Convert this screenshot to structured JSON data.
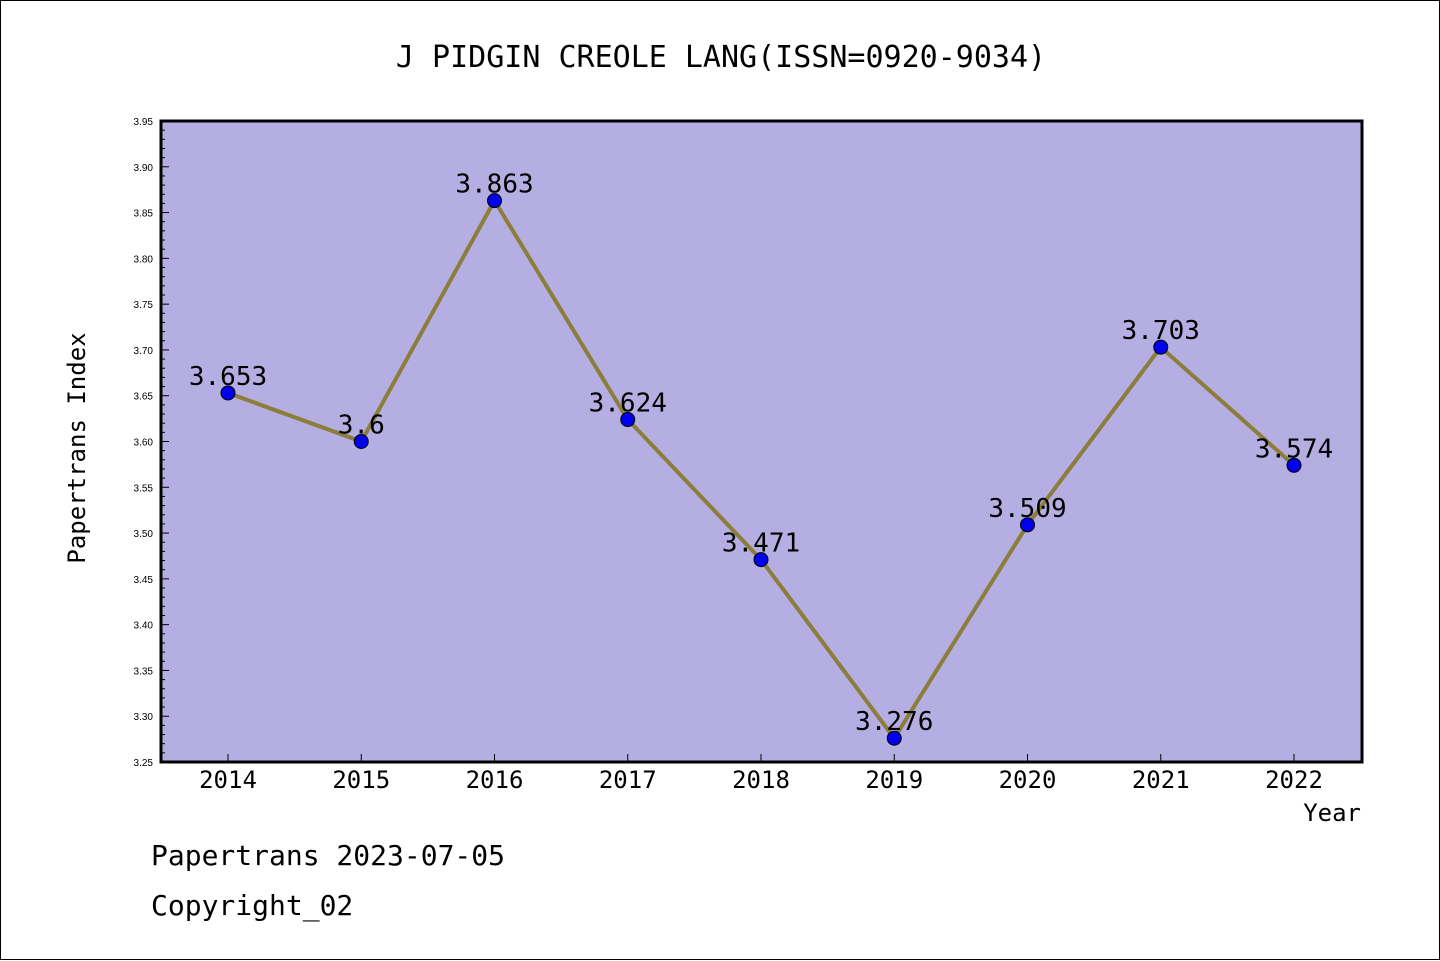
{
  "colors": {
    "plot_background": "#b5aee2",
    "line": "#8b7d3a",
    "marker": "#0000ee",
    "axis": "#000000"
  },
  "footer": {
    "line1": "Papertrans 2023-07-05",
    "line2": "Copyright_02"
  },
  "chart_data": {
    "type": "line",
    "title": "J PIDGIN CREOLE LANG(ISSN=0920-9034)",
    "xlabel": "Year",
    "ylabel": "Papertrans Index",
    "categories": [
      "2014",
      "2015",
      "2016",
      "2017",
      "2018",
      "2019",
      "2020",
      "2021",
      "2022"
    ],
    "series": [
      {
        "values": [
          3.653,
          3.6,
          3.863,
          3.624,
          3.471,
          3.276,
          3.509,
          3.703,
          3.574
        ],
        "labels": [
          "3.653",
          "3.6",
          "3.863",
          "3.624",
          "3.471",
          "3.276",
          "3.509",
          "3.703",
          "3.574"
        ]
      }
    ],
    "ylim": [
      3.25,
      3.95
    ],
    "yticks": [
      "3.25",
      "3.30",
      "3.35",
      "3.40",
      "3.45",
      "3.50",
      "3.55",
      "3.60",
      "3.65",
      "3.70",
      "3.75",
      "3.80",
      "3.85",
      "3.90",
      "3.95"
    ],
    "grid": false,
    "legend": "none"
  }
}
